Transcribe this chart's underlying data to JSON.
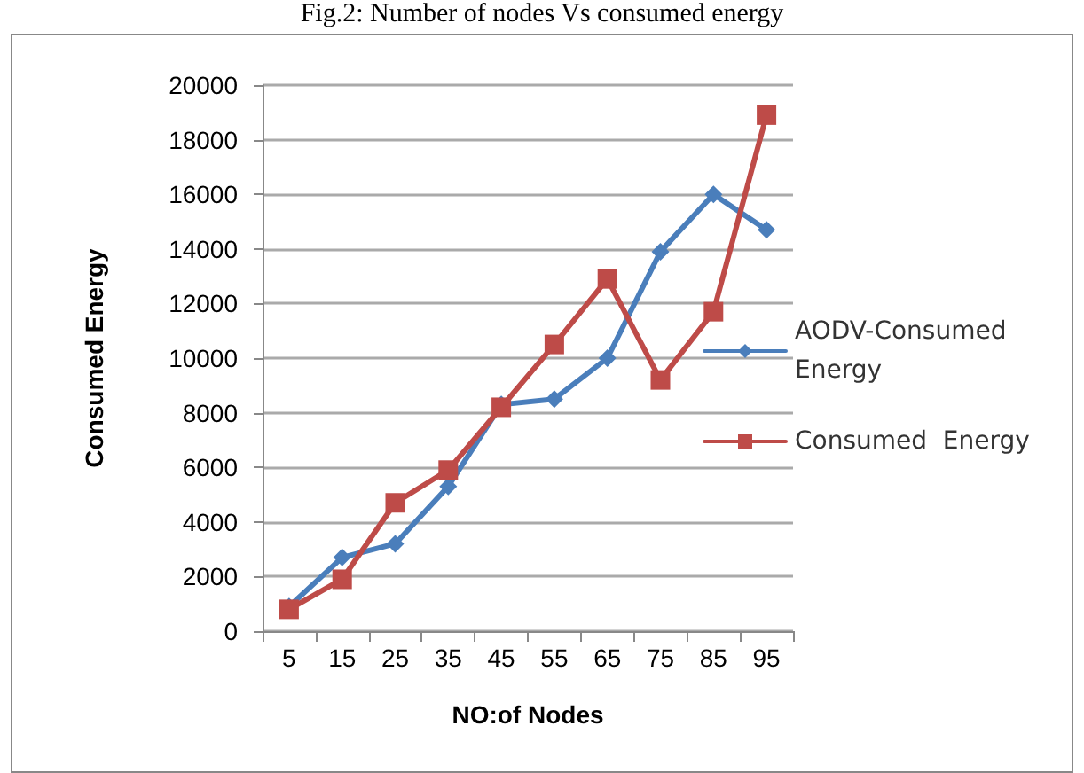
{
  "chart_data": {
    "type": "line",
    "title": "Fig.2: Number of nodes Vs consumed energy",
    "xlabel": "NO:of Nodes",
    "ylabel": "Consumed Energy",
    "categories": [
      "5",
      "15",
      "25",
      "35",
      "45",
      "55",
      "65",
      "75",
      "85",
      "95"
    ],
    "series": [
      {
        "name": "AODV-Consumed Energy",
        "color": "#4a7ebb",
        "marker": "diamond",
        "values": [
          900,
          2700,
          3200,
          5300,
          8300,
          8500,
          10000,
          13900,
          16000,
          14700
        ]
      },
      {
        "name": "Consumed  Energy",
        "color": "#be4b48",
        "marker": "square",
        "values": [
          800,
          1900,
          4700,
          5900,
          8200,
          10500,
          12900,
          9200,
          11700,
          18900
        ]
      }
    ],
    "ylim": [
      0,
      20000
    ],
    "yticks": [
      0,
      2000,
      4000,
      6000,
      8000,
      10000,
      12000,
      14000,
      16000,
      18000,
      20000
    ],
    "grid": "y",
    "legend": "right",
    "line_style": "solid"
  }
}
